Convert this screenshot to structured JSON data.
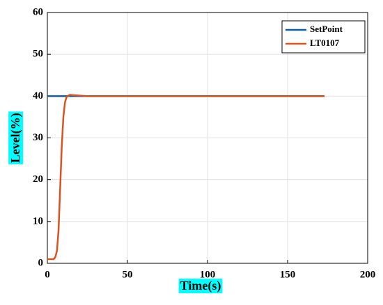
{
  "chart_data": {
    "type": "line",
    "x_label": "Time(s)",
    "y_label": "Level(%)",
    "xlim": [
      0,
      200
    ],
    "xticks": [
      0,
      50,
      100,
      150,
      200
    ],
    "ylim": [
      0,
      60
    ],
    "yticks": [
      0,
      10,
      20,
      30,
      40,
      50,
      60
    ],
    "grid": true,
    "legend": "upper right",
    "label_background": "#00ffff",
    "series": [
      {
        "name": "SetPoint",
        "color": "#0b5fa5",
        "x": [
          0,
          173
        ],
        "values": [
          40,
          40
        ]
      },
      {
        "name": "LT0107",
        "color": "#d9531e",
        "x": [
          0,
          4,
          5,
          6,
          7,
          8,
          9,
          10,
          11,
          12,
          14,
          17,
          25,
          173
        ],
        "values": [
          1,
          1,
          1.5,
          3,
          8,
          18,
          28,
          35,
          38.5,
          39.8,
          40.3,
          40.2,
          40,
          40
        ]
      }
    ]
  }
}
